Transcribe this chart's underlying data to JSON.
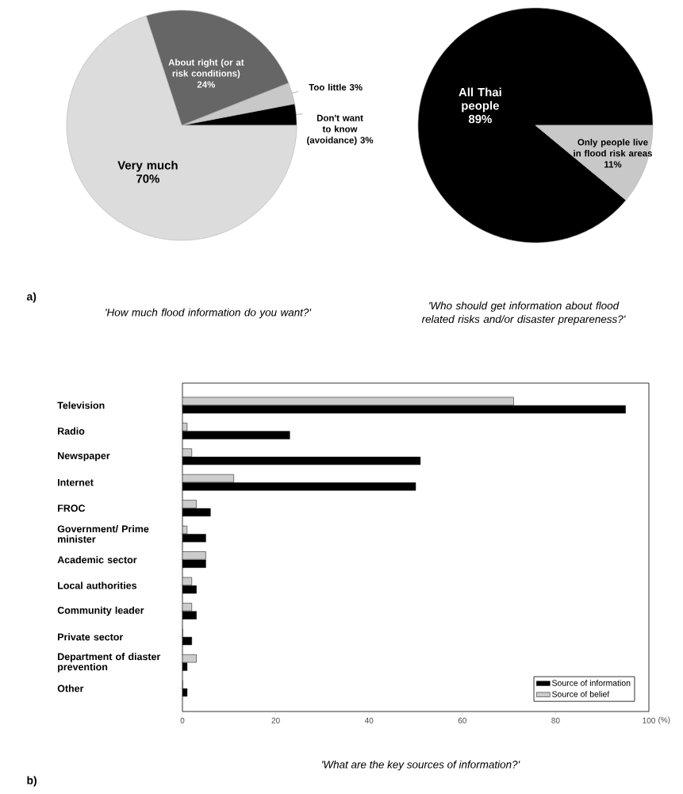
{
  "chart_data": [
    {
      "type": "pie",
      "title": "'How much flood information do you want?'",
      "annotations": [
        "a)"
      ],
      "categories": [
        "Don't want to know (avoidance)",
        "Too little",
        "About right (or at risk conditions)",
        "Very much"
      ],
      "values": [
        3,
        3,
        24,
        70
      ],
      "value_labels": [
        "3%",
        "3%",
        "24%",
        "70%"
      ],
      "colors": [
        "#000000",
        "#c8c8c8",
        "#666666",
        "#dcdcdc"
      ]
    },
    {
      "type": "pie",
      "title": "'Who should get information about flood related risks and/or disaster prepareness?'",
      "categories": [
        "All Thai people",
        "Only people live in flood risk areas"
      ],
      "values": [
        89,
        11
      ],
      "value_labels": [
        "89%",
        "11%"
      ],
      "colors": [
        "#000000",
        "#c8c8c8"
      ]
    },
    {
      "type": "bar",
      "orientation": "horizontal",
      "title": "'What are the key sources of information?'",
      "annotations": [
        "b)"
      ],
      "xlabel": "(%)",
      "categories": [
        "Television",
        "Radio",
        "Newspaper",
        "Internet",
        "FROC",
        "Government/ Prime minister",
        "Academic sector",
        "Local authorities",
        "Community leader",
        "Private sector",
        "Department of diaster prevention",
        "Other"
      ],
      "series": [
        {
          "name": "Source of information",
          "color": "#000000",
          "values": [
            95,
            23,
            51,
            50,
            6,
            5,
            5,
            3,
            3,
            2,
            1,
            1
          ]
        },
        {
          "name": "Source of belief",
          "color": "#cccccc",
          "values": [
            71,
            1,
            2,
            11,
            3,
            1,
            5,
            2,
            2,
            0,
            3,
            0
          ]
        }
      ],
      "xlim": [
        0,
        100
      ],
      "xticks": [
        0,
        20,
        40,
        60,
        80,
        100
      ],
      "legend": "bottom right"
    }
  ]
}
